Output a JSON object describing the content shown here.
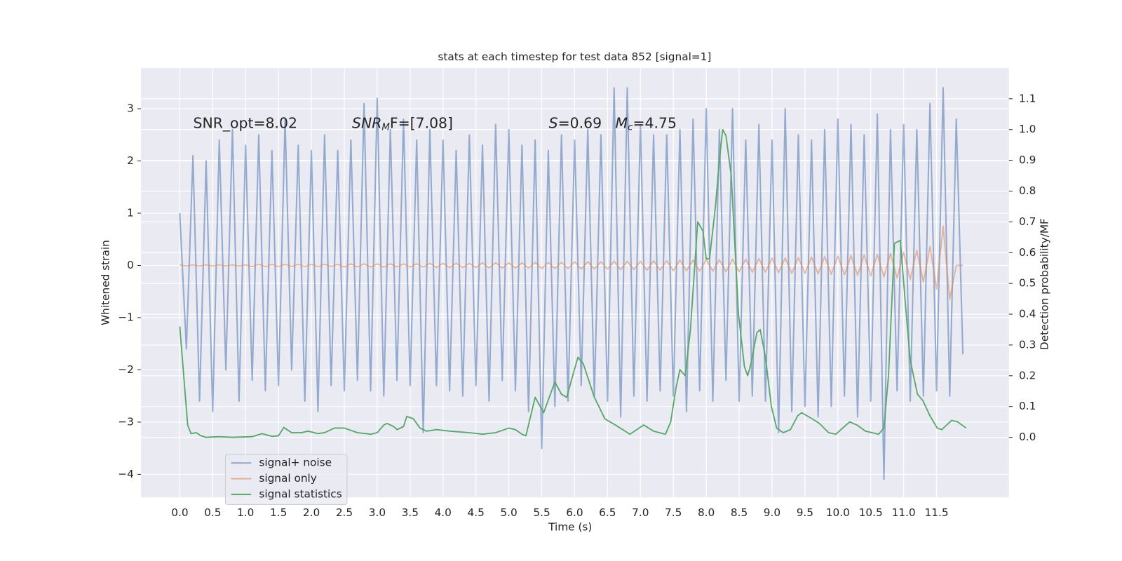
{
  "chart_data": {
    "type": "line",
    "title": "stats at each timestep for test data 852 [signal=1]",
    "xlabel": "Time (s)",
    "ylabel": "Whitened strain",
    "y2label": "Detection probability/MF",
    "x": [
      0.0,
      0.1,
      0.2,
      0.3,
      0.4,
      0.5,
      0.6,
      0.7,
      0.8,
      0.9,
      1.0,
      1.1,
      1.2,
      1.3,
      1.4,
      1.5,
      1.6,
      1.7,
      1.8,
      1.9,
      2.0,
      2.1,
      2.2,
      2.3,
      2.4,
      2.5,
      2.6,
      2.7,
      2.8,
      2.9,
      3.0,
      3.1,
      3.2,
      3.3,
      3.4,
      3.5,
      3.6,
      3.7,
      3.8,
      3.9,
      4.0,
      4.1,
      4.2,
      4.3,
      4.4,
      4.5,
      4.6,
      4.7,
      4.8,
      4.9,
      5.0,
      5.1,
      5.2,
      5.3,
      5.4,
      5.5,
      5.6,
      5.7,
      5.8,
      5.9,
      6.0,
      6.1,
      6.2,
      6.3,
      6.4,
      6.5,
      6.6,
      6.7,
      6.8,
      6.9,
      7.0,
      7.1,
      7.2,
      7.3,
      7.4,
      7.5,
      7.6,
      7.7,
      7.8,
      7.9,
      8.0,
      8.1,
      8.2,
      8.3,
      8.4,
      8.5,
      8.6,
      8.7,
      8.8,
      8.9,
      9.0,
      9.1,
      9.2,
      9.3,
      9.4,
      9.5,
      9.6,
      9.7,
      9.8,
      9.9,
      10.0,
      10.1,
      10.2,
      10.3,
      10.4,
      10.5,
      10.6,
      10.7,
      10.8,
      10.9,
      11.0,
      11.1,
      11.2,
      11.3,
      11.4,
      11.5,
      11.6,
      11.7,
      11.8,
      11.9
    ],
    "series": [
      {
        "name": "signal+ noise",
        "color": "#4c72b0",
        "values": [
          1.0,
          -1.6,
          2.1,
          -2.6,
          2.0,
          -2.8,
          2.4,
          -2.0,
          2.6,
          -2.6,
          2.3,
          -2.2,
          2.5,
          -2.4,
          2.2,
          -2.3,
          2.8,
          -2.0,
          2.3,
          -2.6,
          2.2,
          -2.8,
          2.5,
          -2.3,
          2.2,
          -2.4,
          2.4,
          -2.2,
          3.1,
          -2.4,
          3.2,
          -2.5,
          2.6,
          -2.2,
          2.8,
          -2.3,
          2.4,
          -3.2,
          2.6,
          -2.3,
          2.4,
          -2.4,
          2.2,
          -2.5,
          2.5,
          -2.3,
          2.3,
          -2.6,
          2.7,
          -2.2,
          2.6,
          -2.4,
          2.3,
          -2.8,
          2.4,
          -3.5,
          2.2,
          -2.7,
          2.5,
          -2.6,
          2.4,
          -2.3,
          2.6,
          -2.5,
          2.5,
          -2.6,
          3.4,
          -2.9,
          3.4,
          -2.5,
          2.7,
          -2.6,
          2.5,
          -2.4,
          2.5,
          -2.5,
          2.6,
          -2.8,
          2.8,
          -2.4,
          3.0,
          -2.6,
          2.6,
          -2.2,
          3.0,
          -2.6,
          2.4,
          -2.5,
          2.7,
          -2.6,
          2.4,
          -3.2,
          3.0,
          -2.8,
          2.5,
          -2.7,
          2.4,
          -2.9,
          2.6,
          -2.7,
          2.8,
          -2.5,
          2.7,
          -2.9,
          2.5,
          -2.6,
          2.9,
          -4.1,
          2.6,
          -2.4,
          2.7,
          -2.6,
          2.6,
          -2.5,
          3.1,
          -2.4,
          3.4,
          -2.5,
          2.8,
          -1.7
        ]
      },
      {
        "name": "signal only",
        "color": "#dd8452",
        "values": [
          0.01,
          -0.01,
          0.01,
          -0.01,
          0.01,
          -0.01,
          0.01,
          -0.01,
          0.01,
          -0.01,
          0.01,
          -0.02,
          0.02,
          -0.02,
          0.02,
          -0.02,
          0.02,
          -0.02,
          0.02,
          -0.02,
          0.02,
          -0.02,
          0.02,
          -0.02,
          0.02,
          -0.03,
          0.03,
          -0.03,
          0.03,
          -0.03,
          0.03,
          -0.03,
          0.03,
          -0.03,
          0.03,
          -0.03,
          0.03,
          -0.03,
          0.04,
          -0.04,
          0.04,
          -0.04,
          0.04,
          -0.04,
          0.04,
          -0.04,
          0.05,
          -0.05,
          0.05,
          -0.05,
          0.05,
          -0.05,
          0.05,
          -0.05,
          0.06,
          -0.06,
          0.06,
          -0.06,
          0.06,
          -0.06,
          0.07,
          -0.07,
          0.07,
          -0.07,
          0.07,
          -0.07,
          0.08,
          -0.08,
          0.08,
          -0.08,
          0.08,
          -0.09,
          0.09,
          -0.09,
          0.09,
          -0.1,
          0.1,
          -0.1,
          0.1,
          -0.11,
          0.11,
          -0.11,
          0.11,
          -0.12,
          0.12,
          -0.12,
          0.12,
          -0.13,
          0.13,
          -0.13,
          0.14,
          -0.14,
          0.14,
          -0.15,
          0.15,
          -0.15,
          0.16,
          -0.16,
          0.17,
          -0.17,
          0.18,
          -0.18,
          0.19,
          -0.19,
          0.2,
          -0.2,
          0.21,
          -0.22,
          0.23,
          -0.24,
          0.25,
          -0.27,
          0.29,
          -0.32,
          0.36,
          -0.45,
          0.75,
          -0.65,
          0,
          0
        ]
      },
      {
        "name": "signal statistics",
        "color": "#55a868",
        "axis": "y2",
        "x": [
          0,
          0.12,
          0.17,
          0.25,
          0.32,
          0.4,
          0.6,
          0.8,
          1.1,
          1.25,
          1.4,
          1.5,
          1.58,
          1.7,
          1.85,
          1.95,
          2.1,
          2.2,
          2.35,
          2.5,
          2.7,
          2.9,
          3.0,
          3.1,
          3.15,
          3.25,
          3.3,
          3.4,
          3.45,
          3.55,
          3.65,
          3.75,
          3.9,
          4.1,
          4.4,
          4.6,
          4.8,
          5.0,
          5.1,
          5.2,
          5.26,
          5.4,
          5.53,
          5.7,
          5.8,
          5.88,
          5.97,
          6.05,
          6.13,
          6.3,
          6.46,
          6.62,
          6.84,
          7.05,
          7.2,
          7.38,
          7.46,
          7.54,
          7.6,
          7.68,
          7.76,
          7.87,
          7.95,
          8.0,
          8.05,
          8.14,
          8.2,
          8.25,
          8.3,
          8.38,
          8.49,
          8.58,
          8.63,
          8.68,
          8.77,
          8.82,
          8.9,
          8.99,
          9.07,
          9.17,
          9.28,
          9.39,
          9.45,
          9.61,
          9.72,
          9.86,
          9.97,
          10.1,
          10.18,
          10.29,
          10.42,
          10.62,
          10.7,
          10.77,
          10.86,
          10.95,
          11.02,
          11.1,
          11.21,
          11.29,
          11.4,
          11.51,
          11.58,
          11.73,
          11.82,
          11.95
        ],
        "values": [
          0.36,
          0.04,
          0.012,
          0.015,
          0.005,
          0,
          0.002,
          0,
          0.002,
          0.012,
          0.003,
          0.005,
          0.032,
          0.015,
          0.015,
          0.02,
          0.012,
          0.015,
          0.03,
          0.03,
          0.015,
          0.01,
          0.015,
          0.04,
          0.045,
          0.035,
          0.025,
          0.035,
          0.068,
          0.06,
          0.03,
          0.02,
          0.025,
          0.02,
          0.015,
          0.01,
          0.015,
          0.03,
          0.025,
          0.01,
          0.005,
          0.13,
          0.08,
          0.18,
          0.14,
          0.13,
          0.2,
          0.26,
          0.24,
          0.13,
          0.06,
          0.04,
          0.01,
          0.04,
          0.02,
          0.01,
          0.05,
          0.16,
          0.22,
          0.2,
          0.35,
          0.7,
          0.67,
          0.58,
          0.58,
          0.75,
          0.9,
          1.0,
          0.98,
          0.85,
          0.4,
          0.23,
          0.2,
          0.24,
          0.34,
          0.35,
          0.26,
          0.1,
          0.03,
          0.015,
          0.025,
          0.07,
          0.08,
          0.06,
          0.045,
          0.015,
          0.01,
          0.035,
          0.05,
          0.04,
          0.02,
          0.01,
          0.03,
          0.2,
          0.63,
          0.64,
          0.45,
          0.25,
          0.14,
          0.12,
          0.07,
          0.03,
          0.025,
          0.055,
          0.05,
          0.03
        ]
      }
    ],
    "xlim": [
      -0.59,
      12.6
    ],
    "ylim": [
      -4.44,
      3.78
    ],
    "y2lim": [
      -0.195,
      1.2
    ],
    "xticks": [
      {
        "value": 0,
        "label": "0.0"
      },
      {
        "value": 0.5,
        "label": "0.5"
      },
      {
        "value": 1,
        "label": "1.0"
      },
      {
        "value": 1.5,
        "label": "1.5"
      },
      {
        "value": 2,
        "label": "2.0"
      },
      {
        "value": 2.5,
        "label": "2.5"
      },
      {
        "value": 3,
        "label": "3.0"
      },
      {
        "value": 3.5,
        "label": "3.5"
      },
      {
        "value": 4,
        "label": "4.0"
      },
      {
        "value": 4.5,
        "label": "4.5"
      },
      {
        "value": 5,
        "label": "5.0"
      },
      {
        "value": 5.5,
        "label": "5.5"
      },
      {
        "value": 6,
        "label": "6.0"
      },
      {
        "value": 6.5,
        "label": "6.5"
      },
      {
        "value": 7,
        "label": "7.0"
      },
      {
        "value": 7.5,
        "label": "7.5"
      },
      {
        "value": 8,
        "label": "8.0"
      },
      {
        "value": 8.5,
        "label": "8.5"
      },
      {
        "value": 9,
        "label": "9.0"
      },
      {
        "value": 9.5,
        "label": "9.5"
      },
      {
        "value": 10,
        "label": "10.0"
      },
      {
        "value": 10.5,
        "label": "10.5"
      },
      {
        "value": 11,
        "label": "11.0"
      },
      {
        "value": 11.5,
        "label": "11.5"
      }
    ],
    "yticks": [
      {
        "value": -4,
        "label": "−4"
      },
      {
        "value": -3,
        "label": "−3"
      },
      {
        "value": -2,
        "label": "−2"
      },
      {
        "value": -1,
        "label": "−1"
      },
      0,
      1,
      2,
      3
    ],
    "y2ticks": [
      {
        "value": 0,
        "label": "0.0"
      },
      {
        "value": 0.1,
        "label": "0.1"
      },
      {
        "value": 0.2,
        "label": "0.2"
      },
      {
        "value": 0.3,
        "label": "0.3"
      },
      {
        "value": 0.4,
        "label": "0.4"
      },
      {
        "value": 0.5,
        "label": "0.5"
      },
      {
        "value": 0.6,
        "label": "0.6"
      },
      {
        "value": 0.7,
        "label": "0.7"
      },
      {
        "value": 0.8,
        "label": "0.8"
      },
      {
        "value": 0.9,
        "label": "0.9"
      },
      {
        "value": 1,
        "label": "1.0"
      },
      {
        "value": 1.1,
        "label": "1.1"
      }
    ],
    "grid": true,
    "legend": "lower left",
    "annotations": [
      {
        "parts": [
          "SNR_opt=8.02"
        ]
      },
      {
        "parts": [
          "SNR",
          "M",
          "F=[7.08]"
        ]
      },
      {
        "parts": [
          "S",
          "=0.69"
        ]
      },
      {
        "parts": [
          "M",
          "c",
          "=4.75"
        ]
      }
    ]
  }
}
